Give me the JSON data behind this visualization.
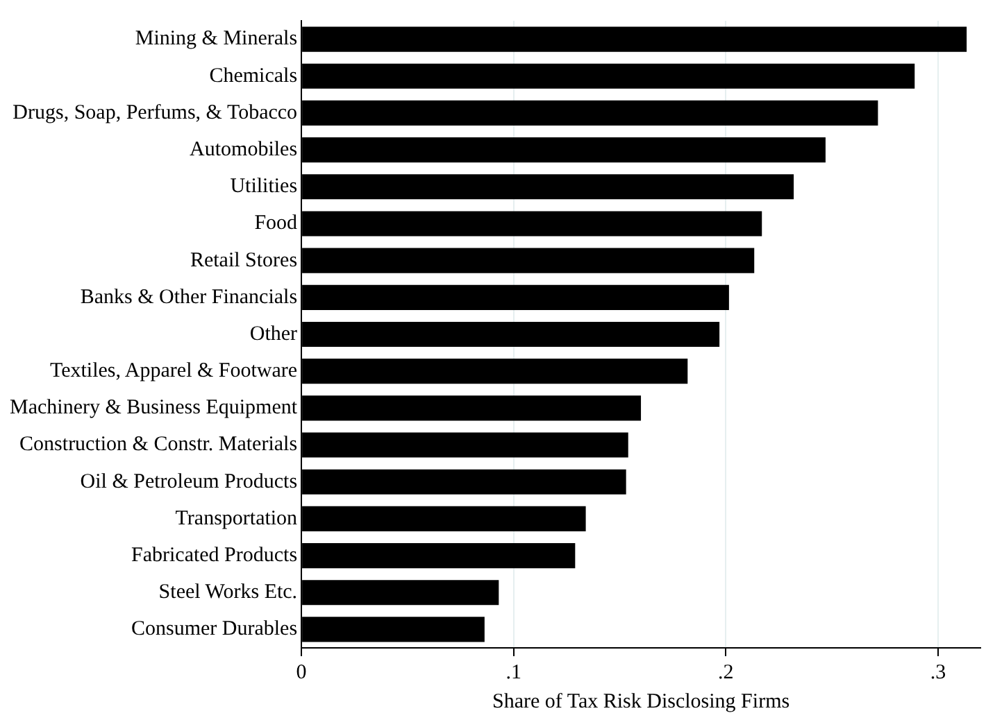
{
  "chart_data": {
    "type": "bar",
    "orientation": "horizontal",
    "xlabel": "Share of Tax Risk Disclosing Firms",
    "categories": [
      "Mining & Minerals",
      "Chemicals",
      "Drugs, Soap, Perfums, & Tobacco",
      "Automobiles",
      "Utilities",
      "Food",
      "Retail Stores",
      "Banks & Other Financials",
      "Other",
      "Textiles, Apparel & Footware",
      "Machinery & Business Equipment",
      "Construction & Constr. Materials",
      "Oil & Petroleum Products",
      "Transportation",
      "Fabricated Products",
      "Steel Works Etc.",
      "Consumer Durables"
    ],
    "values": [
      0.3135,
      0.289,
      0.2717,
      0.247,
      0.232,
      0.217,
      0.2134,
      0.2015,
      0.197,
      0.182,
      0.16,
      0.154,
      0.153,
      0.134,
      0.129,
      0.093,
      0.0863
    ],
    "color": "#000000",
    "xlim": [
      0,
      0.32
    ],
    "xticks": [
      0,
      {
        "value": 0.1,
        "label": ".1"
      },
      {
        "value": 0.2,
        "label": ".2"
      },
      {
        "value": 0.3,
        "label": ".3"
      }
    ],
    "grid": "x"
  }
}
